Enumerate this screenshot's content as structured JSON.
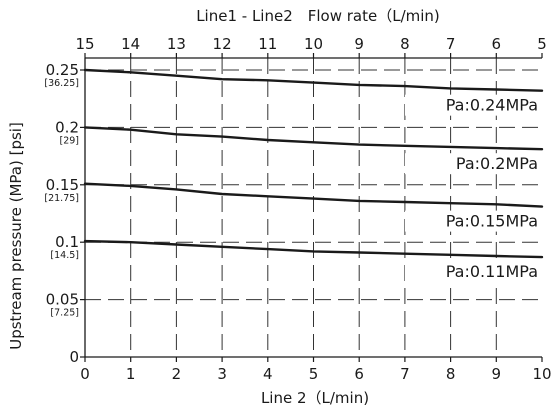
{
  "chart_data": {
    "type": "line",
    "title": "Line1 - Line2　Flow rate（L/min)",
    "xlabel": "Line 2（L/min)",
    "ylabel": "Upstream pressure (MPa) [psi]",
    "xlim": [
      0,
      10
    ],
    "ylim": [
      0,
      0.25
    ],
    "x_ticks": [
      "0",
      "1",
      "2",
      "3",
      "4",
      "5",
      "6",
      "7",
      "8",
      "9",
      "10"
    ],
    "top_ticks": [
      "15",
      "14",
      "13",
      "12",
      "11",
      "10",
      "9",
      "8",
      "7",
      "6",
      "5"
    ],
    "y_ticks": [
      {
        "value": 0,
        "label": "0",
        "psi": ""
      },
      {
        "value": 0.05,
        "label": "0.05",
        "psi": "[7.25]"
      },
      {
        "value": 0.1,
        "label": "0.1",
        "psi": "[14.5]"
      },
      {
        "value": 0.15,
        "label": "0.15",
        "psi": "[21.75]"
      },
      {
        "value": 0.2,
        "label": "0.2",
        "psi": "[29]"
      },
      {
        "value": 0.25,
        "label": "0.25",
        "psi": "[36.25]"
      }
    ],
    "grid": true,
    "series": [
      {
        "name": "Pa:0.24MPa",
        "x": [
          0,
          1,
          2,
          3,
          4,
          5,
          6,
          7,
          8,
          9,
          10
        ],
        "y": [
          0.25,
          0.248,
          0.245,
          0.242,
          0.241,
          0.239,
          0.237,
          0.236,
          0.234,
          0.233,
          0.232
        ]
      },
      {
        "name": "Pa:0.2MPa",
        "x": [
          0,
          1,
          2,
          3,
          4,
          5,
          6,
          7,
          8,
          9,
          10
        ],
        "y": [
          0.2,
          0.198,
          0.194,
          0.192,
          0.189,
          0.187,
          0.185,
          0.184,
          0.183,
          0.182,
          0.181
        ]
      },
      {
        "name": "Pa:0.15MPa",
        "x": [
          0,
          1,
          2,
          3,
          4,
          5,
          6,
          7,
          8,
          9,
          10
        ],
        "y": [
          0.151,
          0.149,
          0.146,
          0.142,
          0.14,
          0.138,
          0.136,
          0.135,
          0.134,
          0.133,
          0.131
        ]
      },
      {
        "name": "Pa:0.11MPa",
        "x": [
          0,
          1,
          2,
          3,
          4,
          5,
          6,
          7,
          8,
          9,
          10
        ],
        "y": [
          0.101,
          0.1,
          0.098,
          0.096,
          0.094,
          0.092,
          0.091,
          0.09,
          0.089,
          0.088,
          0.087
        ]
      }
    ],
    "colors": {
      "line": "#1a1a1a",
      "grid": "#333333",
      "background": "#ffffff"
    }
  }
}
